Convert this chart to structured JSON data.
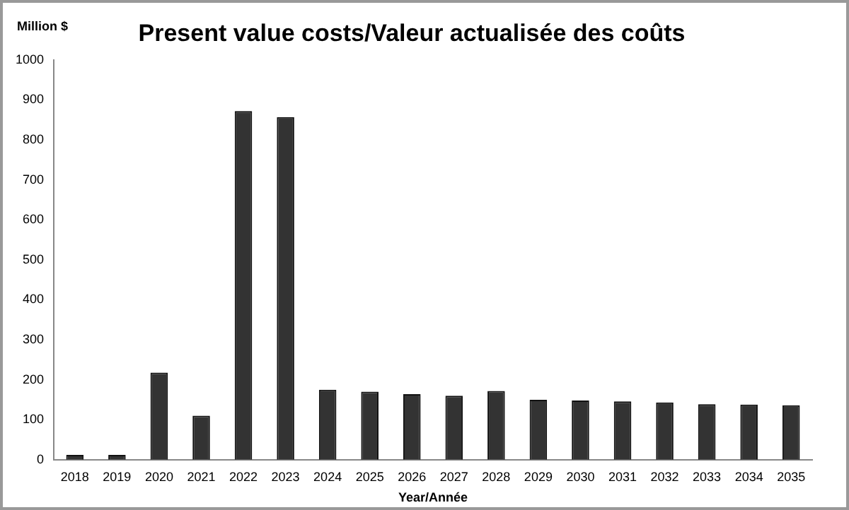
{
  "chart_data": {
    "type": "bar",
    "title": "Present value costs/Valeur actualisée des coûts",
    "ylabel": "Million $",
    "xlabel": "Year/Année",
    "categories": [
      "2018",
      "2019",
      "2020",
      "2021",
      "2022",
      "2023",
      "2024",
      "2025",
      "2026",
      "2027",
      "2028",
      "2029",
      "2030",
      "2031",
      "2032",
      "2033",
      "2034",
      "2035"
    ],
    "values": [
      12,
      12,
      218,
      110,
      872,
      857,
      175,
      170,
      164,
      160,
      172,
      150,
      148,
      146,
      143,
      139,
      138,
      136
    ],
    "color": "#333333",
    "ylim": [
      0,
      1000
    ],
    "yticks": [
      0,
      100,
      200,
      300,
      400,
      500,
      600,
      700,
      800,
      900,
      1000
    ],
    "grid": false,
    "legend": false
  }
}
